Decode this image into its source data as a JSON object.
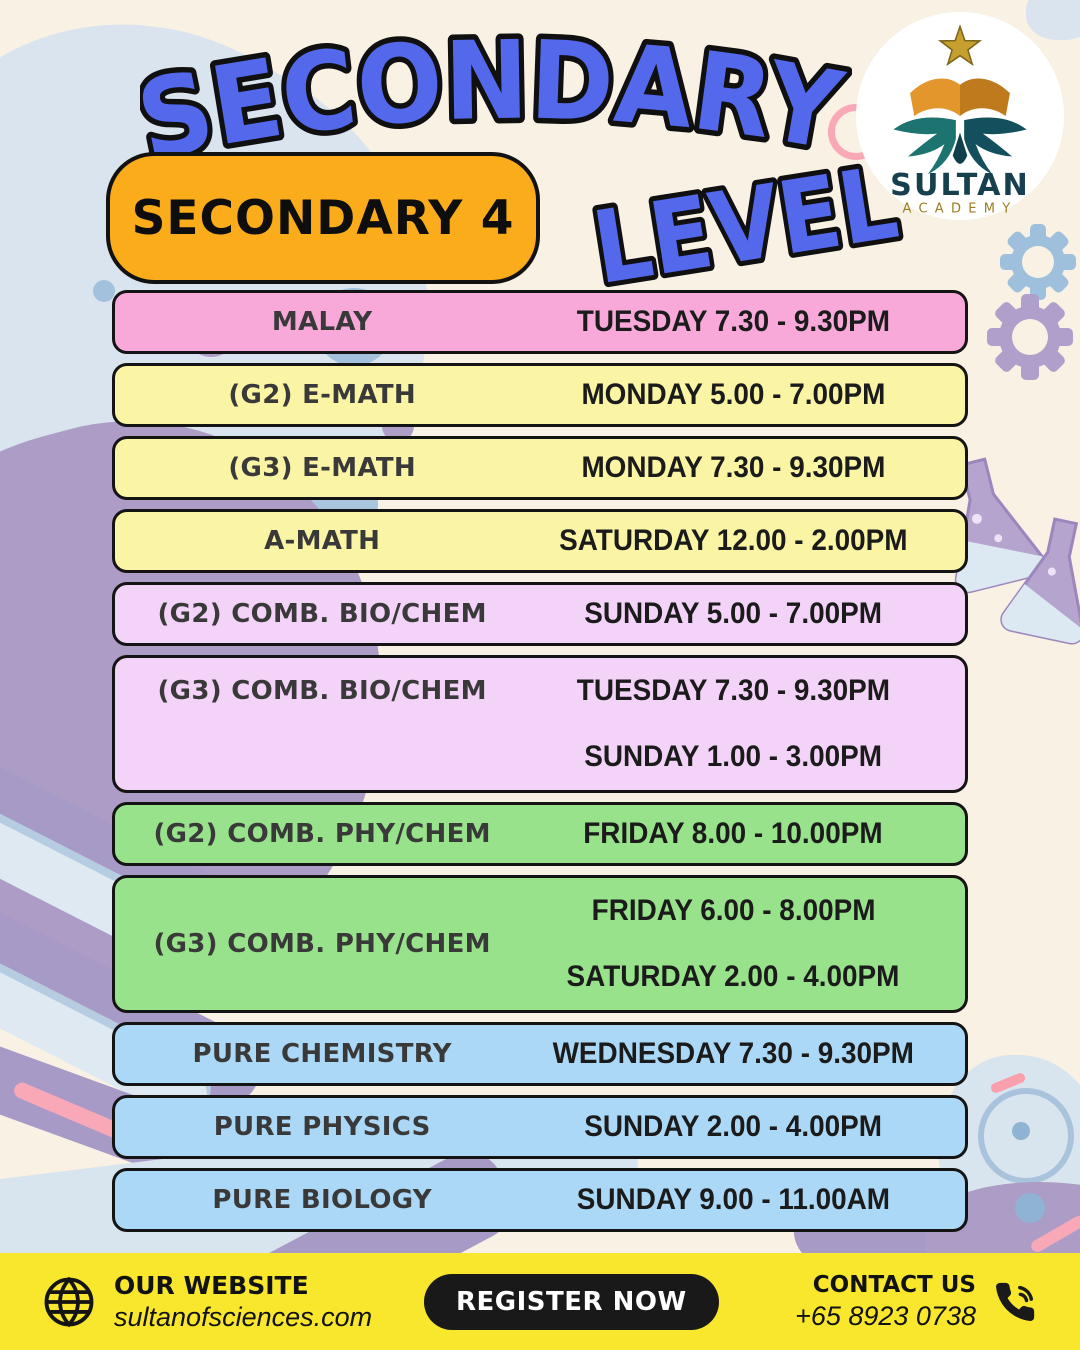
{
  "header": {
    "title": "SECONDARY",
    "level": "LEVEL",
    "badge": "SECONDARY 4",
    "logo": {
      "name": "SULTAN",
      "subtitle": "ACADEMY"
    }
  },
  "schedule": {
    "rows": [
      {
        "subject": "MALAY",
        "times": [
          "TUESDAY 7.30 - 9.30PM"
        ],
        "color": "#F8A9D9"
      },
      {
        "subject": "(G2) E-MATH",
        "times": [
          "MONDAY 5.00 - 7.00PM"
        ],
        "color": "#FAF5A5"
      },
      {
        "subject": "(G3) E-MATH",
        "times": [
          "MONDAY 7.30 - 9.30PM"
        ],
        "color": "#FAF5A5"
      },
      {
        "subject": "A-MATH",
        "times": [
          "SATURDAY 12.00 - 2.00PM"
        ],
        "color": "#FAF5A5"
      },
      {
        "subject": "(G2) COMB. BIO/CHEM",
        "times": [
          "SUNDAY 5.00 - 7.00PM"
        ],
        "color": "#F4D3F8"
      },
      {
        "subject": "(G3) COMB. BIO/CHEM",
        "times": [
          "TUESDAY 7.30 - 9.30PM",
          "SUNDAY 1.00 - 3.00PM"
        ],
        "color": "#F4D3F8",
        "subject_valign": "top"
      },
      {
        "subject": "(G2) COMB. PHY/CHEM",
        "times": [
          "FRIDAY 8.00 - 10.00PM"
        ],
        "color": "#98E28B"
      },
      {
        "subject": "(G3) COMB. PHY/CHEM",
        "times": [
          "FRIDAY 6.00 - 8.00PM",
          "SATURDAY 2.00 - 4.00PM"
        ],
        "color": "#98E28B"
      },
      {
        "subject": "PURE CHEMISTRY",
        "times": [
          "WEDNESDAY 7.30 - 9.30PM"
        ],
        "color": "#AAD8F6"
      },
      {
        "subject": "PURE PHYSICS",
        "times": [
          "SUNDAY 2.00 - 4.00PM"
        ],
        "color": "#AAD8F6"
      },
      {
        "subject": "PURE BIOLOGY",
        "times": [
          "SUNDAY 9.00 - 11.00AM"
        ],
        "color": "#AAD8F6"
      }
    ]
  },
  "footer": {
    "website_label": "OUR WEBSITE",
    "website_url": "sultanofsciences.com",
    "register_label": "REGISTER NOW",
    "contact_label": "CONTACT US",
    "phone": "+65 8923 0738"
  },
  "colors": {
    "background": "#F9F1E3",
    "title_blue": "#5468EC",
    "badge_orange": "#FBAC1B",
    "footer_yellow": "#F8E72D",
    "row_border": "#141414"
  }
}
